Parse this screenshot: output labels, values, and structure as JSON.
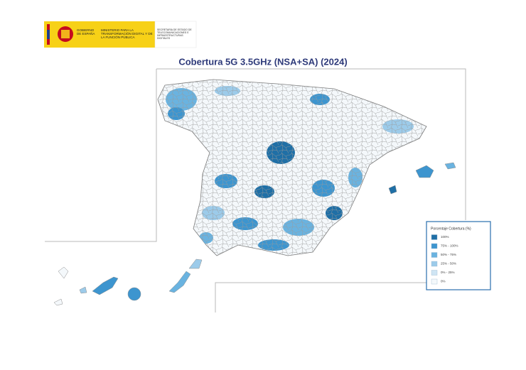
{
  "header": {
    "government": "GOBIERNO DE ESPAÑA",
    "ministry": "MINISTERIO PARA LA TRANSFORMACIÓN DIGITAL Y DE LA FUNCIÓN PÚBLICA",
    "secretariat": "SECRETARÍA DE ESTADO DE TELECOMUNICACIONES E INFRAESTRUCTURAS DIGITALES"
  },
  "title": "Cobertura 5G 3.5GHz (NSA+SA) (2024)",
  "legend": {
    "title": "Porcentaje Cobertura (%)",
    "items": [
      {
        "label": "100%",
        "color": "#1f6fa6"
      },
      {
        "label": "75% - 100%",
        "color": "#3d95cf"
      },
      {
        "label": "50% - 75%",
        "color": "#6ab3e0"
      },
      {
        "label": "25% - 50%",
        "color": "#9ccbea"
      },
      {
        "label": "0% - 25%",
        "color": "#cfe5f4"
      },
      {
        "label": "0%",
        "color": "#f4f8fb"
      }
    ]
  }
}
